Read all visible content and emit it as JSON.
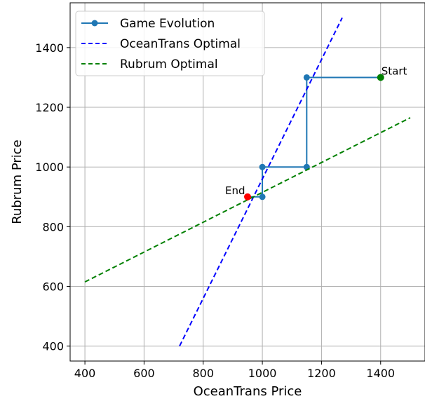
{
  "chart_data": {
    "type": "line",
    "title": "",
    "xlabel": "OceanTrans Price",
    "ylabel": "Rubrum Price",
    "xlim": [
      350,
      1550
    ],
    "ylim": [
      350,
      1550
    ],
    "xticks": [
      400,
      600,
      800,
      1000,
      1200,
      1400
    ],
    "yticks": [
      400,
      600,
      800,
      1000,
      1200,
      1400
    ],
    "grid": true,
    "legend_position": "top-left",
    "series": [
      {
        "name": "Game Evolution",
        "style": "solid-with-markers",
        "color": "#1f77b4",
        "x": [
          1400,
          1150,
          1150,
          1000,
          1000,
          950
        ],
        "y": [
          1300,
          1300,
          1000,
          1000,
          900,
          900
        ]
      },
      {
        "name": "OceanTrans Optimal",
        "style": "dashed",
        "color": "#0000ff",
        "x": [
          720,
          1270
        ],
        "y": [
          400,
          1500
        ]
      },
      {
        "name": "Rubrum Optimal",
        "style": "dashed",
        "color": "#008000",
        "x": [
          400,
          1500
        ],
        "y": [
          615,
          1165
        ]
      }
    ],
    "annotations": [
      {
        "text": "Start",
        "x": 1400,
        "y": 1300,
        "marker_color": "#008000"
      },
      {
        "text": "End",
        "x": 950,
        "y": 900,
        "marker_color": "#ff0000"
      }
    ]
  }
}
